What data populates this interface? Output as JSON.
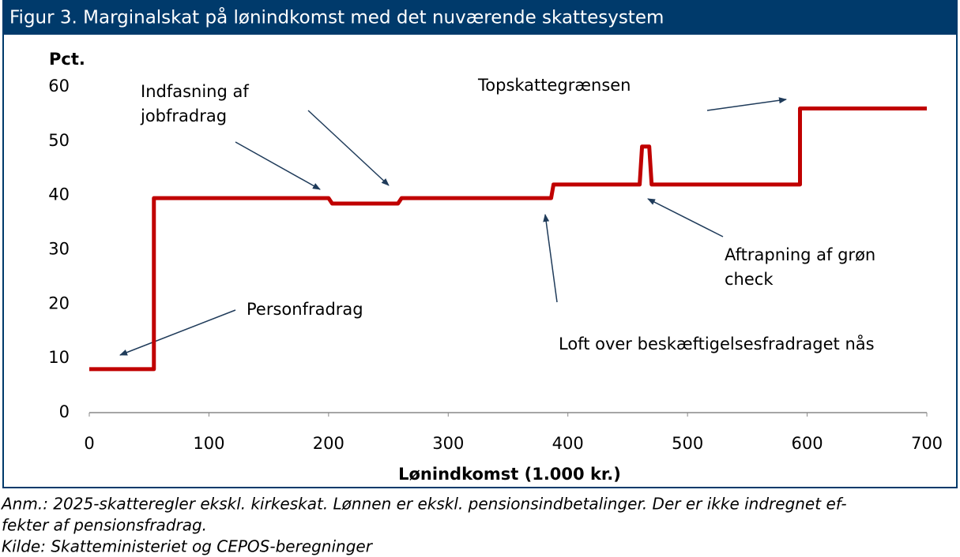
{
  "chart_data": {
    "type": "line",
    "title": "Figur 3. Marginalskat på lønindkomst med det nuværende skattesystem",
    "y_label": "Pct.",
    "x_label": "Lønindkomst (1.000 kr.)",
    "x": [
      0,
      54,
      54,
      200,
      203,
      258,
      261,
      386,
      388,
      460,
      462,
      468,
      470,
      594,
      594,
      700
    ],
    "values": [
      8,
      8,
      39.5,
      39.5,
      38.5,
      38.5,
      39.5,
      39.5,
      42,
      42,
      49,
      49,
      42,
      42,
      56,
      56
    ],
    "color": "#c00000",
    "xlim": [
      0,
      700
    ],
    "xticks": [
      0,
      100,
      200,
      300,
      400,
      500,
      600,
      700
    ],
    "ylim": [
      0,
      60
    ],
    "yticks": [
      0,
      10,
      20,
      30,
      40,
      50,
      60
    ],
    "grid": false,
    "annotations": [
      [
        "Indfasning af",
        "jobfradrag"
      ],
      [
        "Topskattegrænsen"
      ],
      [
        "Personfradrag"
      ],
      [
        "Loft over beskæftigelsesfradraget nås"
      ],
      [
        "Aftrapning af grøn",
        "check"
      ]
    ],
    "notes": [
      "Anm.: 2025-skatteregler ekskl. kirkeskat. Lønnen er ekskl. pensionsindbetalinger. Der er ikke indregnet ef-",
      "fekter af pensionsfradrag.",
      "Kilde: Skatteministeriet og CEPOS-beregninger"
    ]
  }
}
